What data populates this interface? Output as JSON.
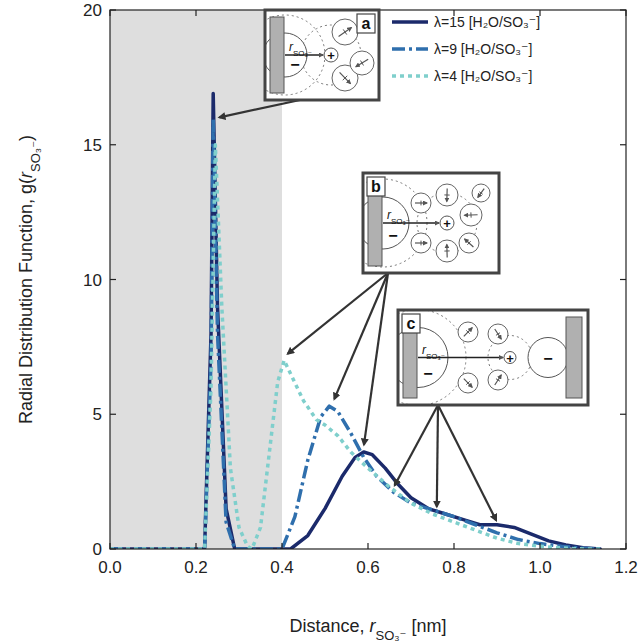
{
  "chart_data": {
    "type": "line",
    "x_label": [
      "Distance, ",
      "r",
      "SO₃⁻",
      " [nm]"
    ],
    "y_label": [
      "Radial Distribution Function, g(",
      "r",
      "SO₃⁻",
      ")"
    ],
    "xlim": [
      0,
      1.2
    ],
    "ylim": [
      0,
      20
    ],
    "xticks": [
      {
        "value": 0,
        "label": "0.0"
      },
      0.2,
      0.4,
      0.6,
      0.8,
      {
        "value": 1,
        "label": "1.0"
      },
      {
        "value": 1.2,
        "label": "1.2"
      }
    ],
    "yticks": [
      0,
      5,
      10,
      15,
      20
    ],
    "grid": false,
    "legend": "upper right",
    "shaded_region": [
      0,
      0.4
    ],
    "series": [
      {
        "name": "λ=15 [H₂O/SO₃⁻]",
        "color": "#1b2a6b",
        "line_style": "solid",
        "x": [
          0,
          0.22,
          0.235,
          0.24,
          0.25,
          0.27,
          0.29,
          0.42,
          0.46,
          0.5,
          0.54,
          0.57,
          0.59,
          0.61,
          0.64,
          0.67,
          0.7,
          0.74,
          0.78,
          0.82,
          0.86,
          0.9,
          0.94,
          0.98,
          1.02,
          1.06,
          1.1,
          1.14
        ],
        "values": [
          0,
          0,
          8,
          16.9,
          9,
          1.5,
          0,
          0,
          0.5,
          1.5,
          2.7,
          3.4,
          3.6,
          3.5,
          3.0,
          2.4,
          1.9,
          1.5,
          1.3,
          1.1,
          0.9,
          0.9,
          0.8,
          0.55,
          0.3,
          0.15,
          0.05,
          0
        ]
      },
      {
        "name": "λ=9 [H₂O/SO₃⁻]",
        "color": "#2f6fad",
        "line_style": "dashdot",
        "x": [
          0,
          0.22,
          0.235,
          0.24,
          0.25,
          0.27,
          0.29,
          0.4,
          0.43,
          0.46,
          0.49,
          0.51,
          0.53,
          0.56,
          0.59,
          0.62,
          0.66,
          0.7,
          0.75,
          0.8,
          0.85,
          0.9,
          0.95,
          1.0,
          1.05,
          1.1,
          1.14
        ],
        "values": [
          0,
          0,
          7,
          16.0,
          8,
          1,
          0,
          0,
          1.2,
          3.3,
          4.9,
          5.3,
          5.1,
          4.3,
          3.4,
          2.7,
          2.1,
          1.7,
          1.45,
          1.2,
          0.9,
          0.6,
          0.35,
          0.2,
          0.1,
          0.03,
          0
        ]
      },
      {
        "name": "λ=4 [H₂O/SO₃⁻]",
        "color": "#7fcfcc",
        "line_style": "dashed",
        "x": [
          0,
          0.22,
          0.235,
          0.245,
          0.26,
          0.28,
          0.3,
          0.32,
          0.33,
          0.35,
          0.37,
          0.39,
          0.405,
          0.42,
          0.45,
          0.48,
          0.5,
          0.53,
          0.56,
          0.6,
          0.65,
          0.7,
          0.75,
          0.8,
          0.85,
          0.9,
          0.95,
          1.0,
          1.05,
          1.1,
          1.14
        ],
        "values": [
          0,
          0,
          6,
          15.0,
          9,
          3,
          0.8,
          0.1,
          0,
          0.8,
          3.5,
          6.2,
          7.0,
          6.5,
          5.5,
          4.8,
          4.6,
          4.2,
          3.6,
          3.0,
          2.3,
          1.7,
          1.3,
          1.0,
          0.7,
          0.4,
          0.2,
          0.1,
          0.04,
          0,
          0
        ]
      }
    ],
    "insets": [
      {
        "label": "a",
        "r_label": [
          "r",
          "SO₃⁻"
        ],
        "charges": [
          "−",
          "+"
        ],
        "targets": [
          [
            0.25,
            16.0
          ]
        ]
      },
      {
        "label": "b",
        "r_label": [
          "r",
          "SO₃⁻"
        ],
        "charges": [
          "−",
          "+"
        ],
        "targets": [
          [
            0.41,
            7.2
          ],
          [
            0.52,
            5.5
          ],
          [
            0.59,
            3.8
          ]
        ]
      },
      {
        "label": "c",
        "r_label": [
          "r",
          "SO₃⁻"
        ],
        "charges": [
          "−",
          "+",
          "−"
        ],
        "targets": [
          [
            0.66,
            2.3
          ],
          [
            0.76,
            1.5
          ],
          [
            0.9,
            1.0
          ]
        ]
      }
    ]
  }
}
